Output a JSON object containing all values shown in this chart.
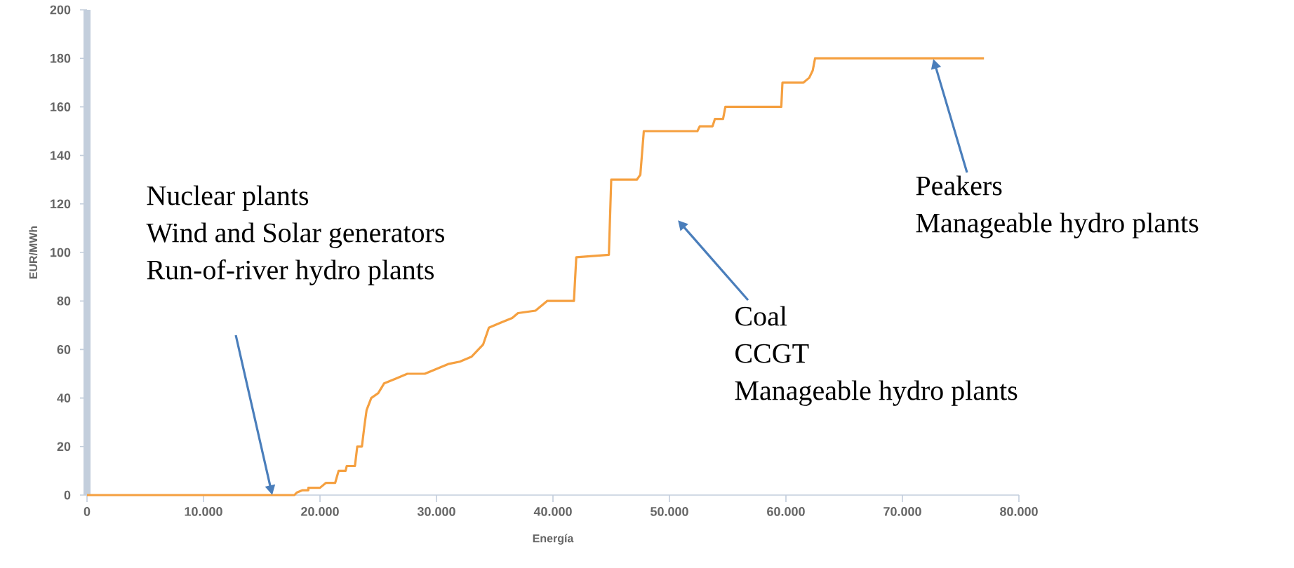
{
  "chart_data": {
    "type": "line",
    "xlabel": "Energía",
    "ylabel": "EUR/MWh",
    "xlim": [
      0,
      80000
    ],
    "ylim": [
      0,
      200
    ],
    "xticks": [
      0,
      {
        "value": 10000,
        "label": "10.000"
      },
      {
        "value": 20000,
        "label": "20.000"
      },
      {
        "value": 30000,
        "label": "30.000"
      },
      {
        "value": 40000,
        "label": "40.000"
      },
      {
        "value": 50000,
        "label": "50.000"
      },
      {
        "value": 60000,
        "label": "60.000"
      },
      {
        "value": 70000,
        "label": "70.000"
      },
      {
        "value": 80000,
        "label": "80.000"
      }
    ],
    "yticks": [
      0,
      20,
      40,
      60,
      80,
      100,
      120,
      140,
      160,
      180,
      200
    ],
    "grid": false,
    "marker": "none",
    "line_style": "solid",
    "series": [
      {
        "color": "#f5a040",
        "x": [
          0,
          17800,
          18000,
          18500,
          19000,
          19000,
          20000,
          20500,
          21300,
          21600,
          22200,
          22300,
          23000,
          23200,
          23600,
          23800,
          24000,
          24400,
          25000,
          25500,
          26500,
          27500,
          29000,
          30000,
          31000,
          32000,
          33000,
          34000,
          34500,
          35500,
          36500,
          37000,
          38500,
          39500,
          41800,
          42000,
          44800,
          45000,
          47200,
          47500,
          47800,
          52400,
          52600,
          53700,
          53900,
          54600,
          54800,
          59600,
          59700,
          61500,
          62000,
          62300,
          62500,
          77000
        ],
        "values": [
          0,
          0,
          1,
          2,
          2,
          3,
          3,
          5,
          5,
          10,
          10,
          12,
          12,
          20,
          20,
          28,
          35,
          40,
          42,
          46,
          48,
          50,
          50,
          52,
          54,
          55,
          57,
          62,
          69,
          71,
          73,
          75,
          76,
          80,
          80,
          98,
          99,
          130,
          130,
          132,
          150,
          150,
          152,
          152,
          155,
          155,
          160,
          160,
          170,
          170,
          172,
          175,
          180,
          180
        ]
      }
    ],
    "annotations": [
      "Nuclear plants",
      "Wind and Solar generators",
      "Run-of-river  hydro plants",
      "Coal",
      "CCGT",
      "Manageable hydro plants",
      "Peakers",
      "Manageable hydro plants"
    ]
  }
}
